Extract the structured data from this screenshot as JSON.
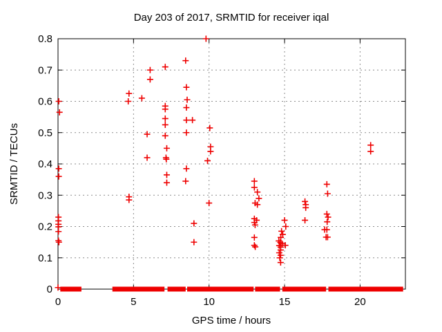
{
  "chart_data": {
    "type": "scatter",
    "title": "Day 203 of 2017, SRMTID for receiver iqal",
    "xlabel": "GPS time / hours",
    "ylabel": "SRMTID / TECUs",
    "xlim": [
      0,
      23
    ],
    "ylim": [
      0,
      0.8
    ],
    "x_ticks": [
      0,
      5,
      10,
      15,
      20
    ],
    "x_tick_labels": [
      "0",
      "5",
      "10",
      "15",
      "20"
    ],
    "y_ticks": [
      0,
      0.1,
      0.2,
      0.3,
      0.4,
      0.5,
      0.6,
      0.7,
      0.8
    ],
    "y_tick_labels": [
      "0",
      "0.1",
      "0.2",
      "0.3",
      "0.4",
      "0.5",
      "0.6",
      "0.7",
      "0.8"
    ],
    "grid": true,
    "legend_position": "none",
    "marker": "plus",
    "marker_color": "#ee0000",
    "grid_color": "#8c8c8c",
    "axis_color": "#000000",
    "background_color": "#ffffff",
    "series": [
      {
        "name": "SRMTID",
        "points": [
          [
            0.05,
            0.6
          ],
          [
            0.1,
            0.565
          ],
          [
            0.05,
            0.385
          ],
          [
            0.05,
            0.36
          ],
          [
            0.03,
            0.23
          ],
          [
            0.03,
            0.218
          ],
          [
            0.03,
            0.207
          ],
          [
            0.03,
            0.199
          ],
          [
            0.03,
            0.184
          ],
          [
            0.03,
            0.155
          ],
          [
            0.06,
            0.15
          ],
          [
            0.0,
            0.005
          ],
          [
            4.7,
            0.625
          ],
          [
            4.65,
            0.6
          ],
          [
            5.55,
            0.61
          ],
          [
            5.9,
            0.495
          ],
          [
            5.9,
            0.42
          ],
          [
            4.7,
            0.295
          ],
          [
            4.7,
            0.285
          ],
          [
            6.1,
            0.7
          ],
          [
            6.1,
            0.67
          ],
          [
            7.1,
            0.71
          ],
          [
            7.1,
            0.585
          ],
          [
            7.1,
            0.575
          ],
          [
            7.1,
            0.545
          ],
          [
            7.1,
            0.525
          ],
          [
            7.1,
            0.49
          ],
          [
            7.2,
            0.45
          ],
          [
            7.15,
            0.42
          ],
          [
            7.17,
            0.415
          ],
          [
            7.2,
            0.365
          ],
          [
            7.2,
            0.34
          ],
          [
            8.45,
            0.73
          ],
          [
            8.5,
            0.645
          ],
          [
            8.55,
            0.605
          ],
          [
            8.5,
            0.58
          ],
          [
            8.5,
            0.54
          ],
          [
            8.9,
            0.54
          ],
          [
            8.5,
            0.5
          ],
          [
            8.5,
            0.385
          ],
          [
            8.45,
            0.345
          ],
          [
            9.0,
            0.21
          ],
          [
            9.0,
            0.15
          ],
          [
            9.8,
            0.8
          ],
          [
            9.9,
            0.41
          ],
          [
            10.05,
            0.515
          ],
          [
            10.1,
            0.455
          ],
          [
            10.1,
            0.44
          ],
          [
            10.0,
            0.275
          ],
          [
            13.0,
            0.345
          ],
          [
            13.0,
            0.325
          ],
          [
            13.2,
            0.31
          ],
          [
            13.3,
            0.29
          ],
          [
            13.05,
            0.275
          ],
          [
            13.2,
            0.27
          ],
          [
            13.0,
            0.225
          ],
          [
            13.15,
            0.22
          ],
          [
            13.0,
            0.213
          ],
          [
            13.05,
            0.205
          ],
          [
            13.0,
            0.165
          ],
          [
            13.0,
            0.14
          ],
          [
            13.06,
            0.135
          ],
          [
            15.0,
            0.22
          ],
          [
            15.08,
            0.2
          ],
          [
            14.8,
            0.185
          ],
          [
            14.88,
            0.175
          ],
          [
            14.75,
            0.165
          ],
          [
            14.62,
            0.154
          ],
          [
            14.72,
            0.149
          ],
          [
            14.84,
            0.145
          ],
          [
            15.05,
            0.14
          ],
          [
            14.65,
            0.139
          ],
          [
            14.74,
            0.134
          ],
          [
            14.74,
            0.125
          ],
          [
            14.65,
            0.116
          ],
          [
            14.74,
            0.108
          ],
          [
            14.68,
            0.1
          ],
          [
            14.74,
            0.085
          ],
          [
            16.35,
            0.28
          ],
          [
            16.4,
            0.27
          ],
          [
            16.4,
            0.26
          ],
          [
            16.35,
            0.22
          ],
          [
            17.8,
            0.335
          ],
          [
            17.85,
            0.305
          ],
          [
            17.8,
            0.24
          ],
          [
            17.88,
            0.23
          ],
          [
            17.82,
            0.215
          ],
          [
            17.65,
            0.19
          ],
          [
            17.8,
            0.19
          ],
          [
            17.75,
            0.166
          ],
          [
            17.85,
            0.166
          ],
          [
            20.7,
            0.46
          ],
          [
            20.7,
            0.44
          ]
        ]
      }
    ],
    "zero_band_segments": [
      [
        0.15,
        1.55
      ],
      [
        3.6,
        7.05
      ],
      [
        7.25,
        8.45
      ],
      [
        8.55,
        12.95
      ],
      [
        13.05,
        14.7
      ],
      [
        14.85,
        17.75
      ],
      [
        17.9,
        22.85
      ]
    ]
  }
}
